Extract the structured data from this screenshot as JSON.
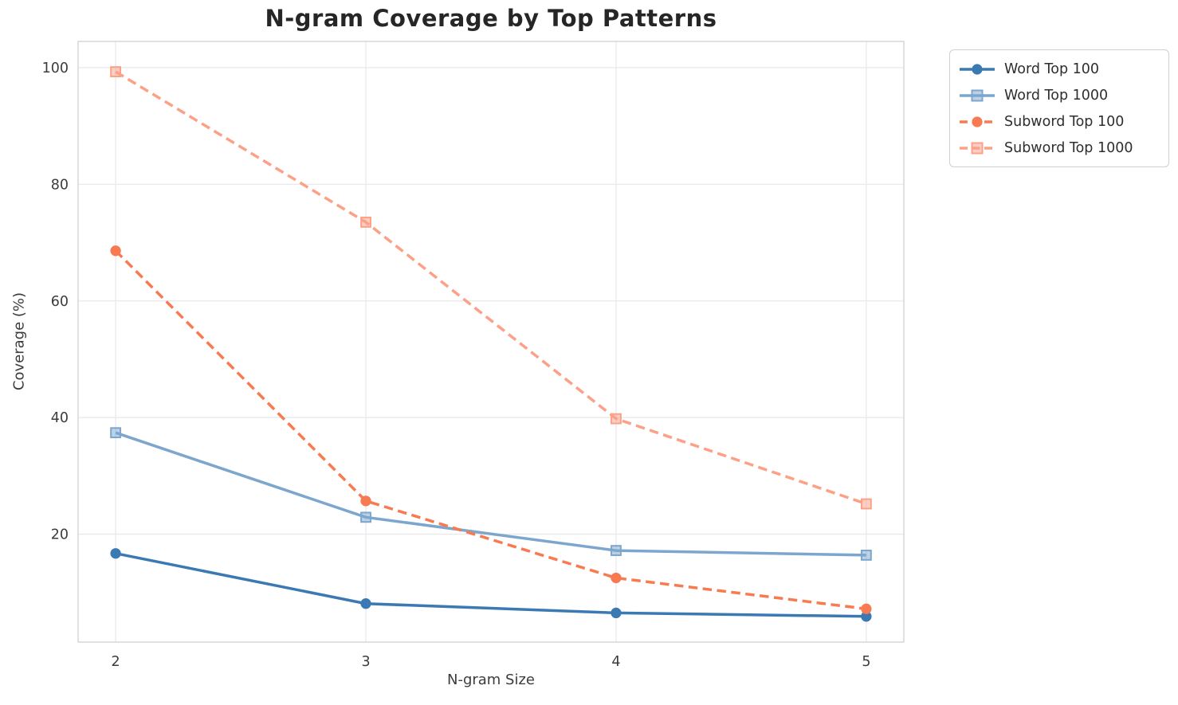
{
  "chart_data": {
    "type": "line",
    "title": "N-gram Coverage by Top Patterns",
    "xlabel": "N-gram Size",
    "ylabel": "Coverage (%)",
    "x": [
      2,
      3,
      4,
      5
    ],
    "xticks": [
      "2",
      "3",
      "4",
      "5"
    ],
    "yticks": [
      20,
      40,
      60,
      80,
      100
    ],
    "xlim": [
      1.85,
      5.15
    ],
    "ylim": [
      1.5,
      104.5
    ],
    "grid": true,
    "legend_position": "outside-upper-right",
    "series": [
      {
        "name": "Word Top 100",
        "values": [
          16.7,
          8.1,
          6.5,
          5.9
        ],
        "color": "#3b79b3",
        "marker": "circle",
        "linestyle": "solid"
      },
      {
        "name": "Word Top 1000",
        "values": [
          37.4,
          22.9,
          17.2,
          16.4
        ],
        "color": "#7ca6ce",
        "marker": "square",
        "linestyle": "solid"
      },
      {
        "name": "Subword Top 100",
        "values": [
          68.6,
          25.7,
          12.5,
          7.2
        ],
        "color": "#f87a50",
        "marker": "circle",
        "linestyle": "dashed"
      },
      {
        "name": "Subword Top 1000",
        "values": [
          99.3,
          73.5,
          39.8,
          25.2
        ],
        "color": "#fca087",
        "marker": "square",
        "linestyle": "dashed"
      }
    ],
    "palette": {
      "background": "#ffffff",
      "grid_color": "#e9e9ed",
      "spine_color": "#d4d4d9",
      "tick_text_color": "#3c3c3c",
      "title_color": "#262626"
    }
  }
}
